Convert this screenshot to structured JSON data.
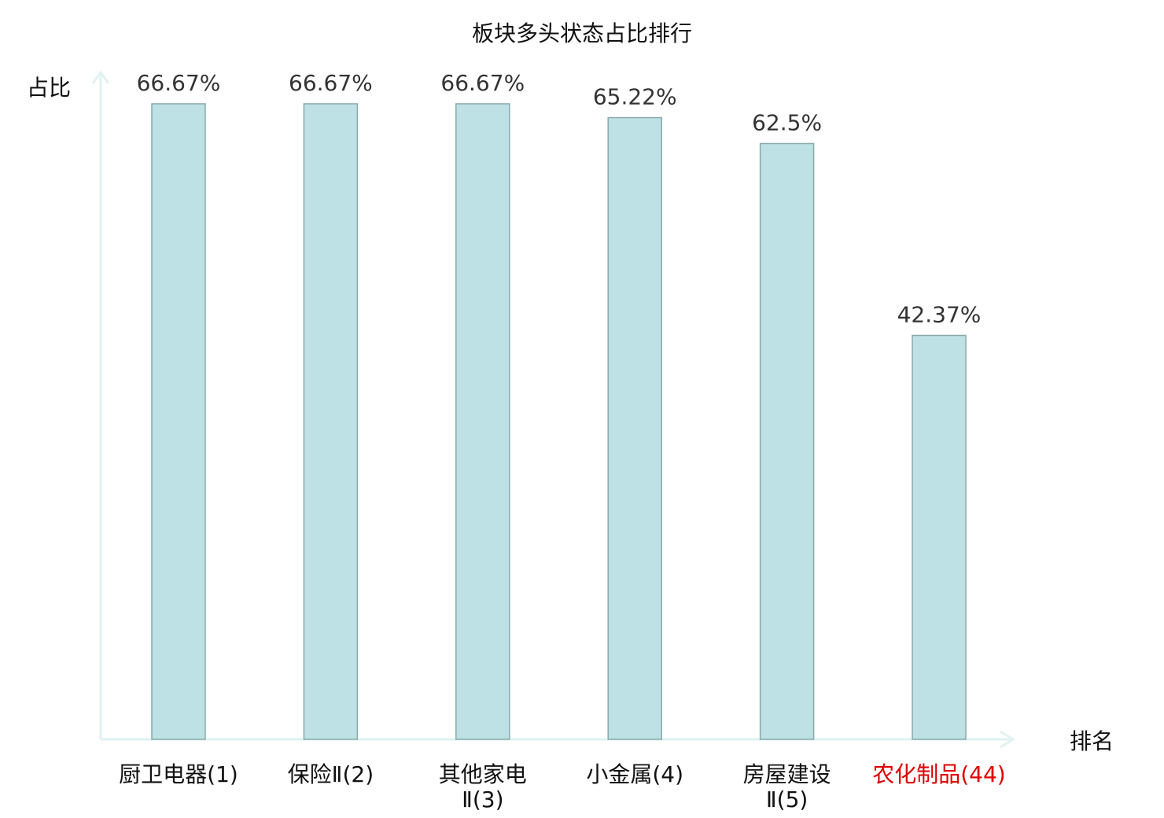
{
  "chart_data": {
    "type": "bar",
    "title": "板块多头状态占比排行",
    "ylabel": "占比",
    "xlabel": "排名",
    "ylim": [
      0,
      70
    ],
    "grid": false,
    "legend": "none",
    "bar_color": "#bde1e4",
    "bar_stroke": "#8aa9ab",
    "axis_color": "#e0f2f1",
    "highlight_color": "#e00000",
    "categories": [
      {
        "name": "厨卫电器",
        "rank": "(1)",
        "lines": [
          "厨卫电器(1)"
        ],
        "highlight": false
      },
      {
        "name": "保险Ⅱ",
        "rank": "(2)",
        "lines": [
          "保险Ⅱ(2)"
        ],
        "highlight": false
      },
      {
        "name": "其他家电Ⅱ",
        "rank": "(3)",
        "lines": [
          "其他家电",
          "Ⅱ(3)"
        ],
        "highlight": false
      },
      {
        "name": "小金属",
        "rank": "(4)",
        "lines": [
          "小金属(4)"
        ],
        "highlight": false
      },
      {
        "name": "房屋建设Ⅱ",
        "rank": "(5)",
        "lines": [
          "房屋建设",
          "Ⅱ(5)"
        ],
        "highlight": false
      },
      {
        "name": "农化制品",
        "rank": "(44)",
        "lines": [
          "农化制品(44)"
        ],
        "highlight": true
      }
    ],
    "values": [
      66.67,
      66.67,
      66.67,
      65.22,
      62.5,
      42.37
    ],
    "value_labels": [
      "66.67%",
      "66.67%",
      "66.67%",
      "65.22%",
      "62.5%",
      "42.37%"
    ]
  }
}
